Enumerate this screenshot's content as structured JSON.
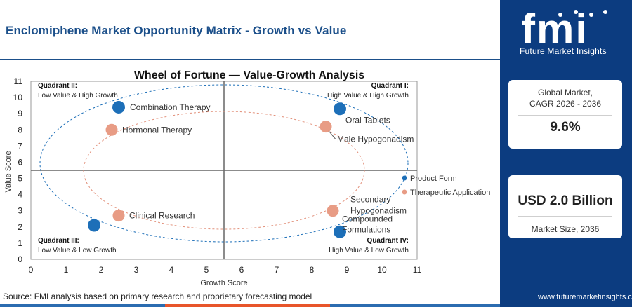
{
  "header": {
    "title": "Enclomiphene Market Opportunity Matrix - Growth vs Value"
  },
  "brand": {
    "logo_text": "fmi",
    "logo_subtitle": "Future Market Insights",
    "website": "www.futuremarketinsights.com"
  },
  "stats": {
    "cagr_label": "Global Market, CAGR 2026 - 2036",
    "cagr_value": "9.6%",
    "size_value": "USD 2.0 Billion",
    "size_label": "Market Size, 2036"
  },
  "footer": {
    "source": "Source: FMI analysis based on primary research and proprietary forecasting model"
  },
  "colors": {
    "brand_navy": "#0c3c80",
    "product_form": "#1d6fb8",
    "therapeutic_application": "#e89c85"
  },
  "chart_data": {
    "type": "scatter",
    "title": "Wheel of Fortune — Value-Growth Analysis",
    "xlabel": "Growth Score",
    "ylabel": "Value Score",
    "xlim": [
      0,
      11
    ],
    "ylim": [
      0,
      11
    ],
    "xticks": [
      0,
      1,
      2,
      3,
      4,
      5,
      6,
      7,
      8,
      9,
      10,
      11
    ],
    "yticks": [
      0,
      1,
      2,
      3,
      4,
      5,
      6,
      7,
      8,
      9,
      10,
      11
    ],
    "divider": {
      "x": 5.5,
      "y": 5.5
    },
    "quadrants": [
      {
        "id": "q2",
        "title": "Quadrant II:",
        "subtitle": "Low Value & High Growth",
        "position": "top-left"
      },
      {
        "id": "q1",
        "title": "Quadrant I:",
        "subtitle": "High Value & High Growth",
        "position": "top-right"
      },
      {
        "id": "q3",
        "title": "Quadrant III:",
        "subtitle": "Low Value & Low Growth",
        "position": "bottom-left"
      },
      {
        "id": "q4",
        "title": "Quadrant IV:",
        "subtitle": "High Value & Low Growth",
        "position": "bottom-right"
      }
    ],
    "legend": [
      {
        "name": "Product Form",
        "color": "#1d6fb8"
      },
      {
        "name": "Therapeutic Application",
        "color": "#e89c85"
      }
    ],
    "legend_position": "right",
    "series": [
      {
        "name": "Product Form",
        "color": "#1d6fb8",
        "points": [
          {
            "label": "Combination Therapy",
            "x": 2.5,
            "y": 9.4
          },
          {
            "label": "Oral Tablets",
            "x": 8.8,
            "y": 9.3
          },
          {
            "label": "Compounded Formulations",
            "x": 8.8,
            "y": 1.7
          },
          {
            "label": "",
            "x": 1.8,
            "y": 2.1
          }
        ]
      },
      {
        "name": "Therapeutic Application",
        "color": "#e89c85",
        "points": [
          {
            "label": "Hormonal Therapy",
            "x": 2.3,
            "y": 8.0
          },
          {
            "label": "Male Hypogonadism",
            "x": 8.4,
            "y": 8.2
          },
          {
            "label": "Secondary Hypogonadism",
            "x": 8.6,
            "y": 3.0
          },
          {
            "label": "Clinical Research",
            "x": 2.5,
            "y": 2.7
          }
        ]
      }
    ]
  }
}
